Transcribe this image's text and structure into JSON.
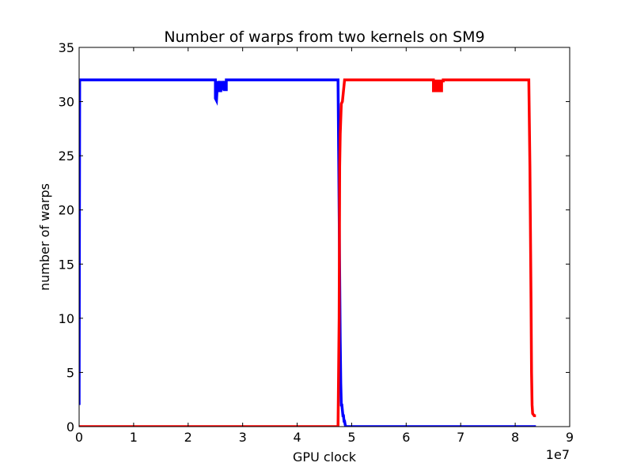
{
  "chart_data": {
    "type": "line",
    "title": "Number of warps from two kernels on SM9",
    "xlabel": "GPU clock",
    "ylabel": "number of warps",
    "x_offset_label": "1e7",
    "xlim": [
      0,
      9
    ],
    "ylim": [
      0,
      35
    ],
    "x_ticks": [
      0,
      1,
      2,
      3,
      4,
      5,
      6,
      7,
      8,
      9
    ],
    "x_tick_labels": [
      "0",
      "1",
      "2",
      "3",
      "4",
      "5",
      "6",
      "7",
      "8",
      "9"
    ],
    "y_ticks": [
      0,
      5,
      10,
      15,
      20,
      25,
      30,
      35
    ],
    "y_tick_labels": [
      "0",
      "5",
      "10",
      "15",
      "20",
      "25",
      "30",
      "35"
    ],
    "grid": false,
    "series": [
      {
        "color": "#0000ff",
        "x": [
          0.0,
          0.01,
          0.02,
          2.5,
          2.5,
          2.52,
          2.54,
          2.54,
          2.56,
          2.58,
          2.58,
          2.6,
          2.62,
          2.62,
          2.64,
          2.66,
          2.66,
          2.7,
          2.7,
          4.75,
          4.77,
          4.79,
          4.8,
          4.81,
          4.82,
          4.84,
          4.85,
          4.86,
          4.87,
          4.88,
          4.89,
          4.9,
          5.0,
          8.38
        ],
        "y": [
          2,
          32,
          32,
          32,
          30.3,
          30.1,
          31.9,
          31.2,
          31.2,
          31.9,
          31.0,
          31.0,
          31.9,
          31.2,
          31.2,
          31.9,
          31.1,
          31.1,
          32,
          32,
          20,
          8,
          4,
          2,
          2,
          1,
          1,
          0.5,
          0.5,
          0.2,
          0,
          0,
          0,
          0
        ]
      },
      {
        "color": "#ff0000",
        "x": [
          0.0,
          4.75,
          4.77,
          4.78,
          4.79,
          4.81,
          4.83,
          4.85,
          4.87,
          4.9,
          4.92,
          6.5,
          6.5,
          6.55,
          6.55,
          6.6,
          6.6,
          6.65,
          6.65,
          6.68,
          6.68,
          8.25,
          8.27,
          8.29,
          8.3,
          8.31,
          8.32,
          8.35,
          8.38
        ],
        "y": [
          0,
          0,
          10,
          24,
          27,
          29.8,
          30,
          31,
          32,
          32,
          32,
          32,
          31,
          31,
          31.9,
          31.9,
          31,
          31,
          31.9,
          31.9,
          32,
          32,
          24,
          12,
          5,
          2,
          1.2,
          1,
          1
        ]
      }
    ]
  }
}
